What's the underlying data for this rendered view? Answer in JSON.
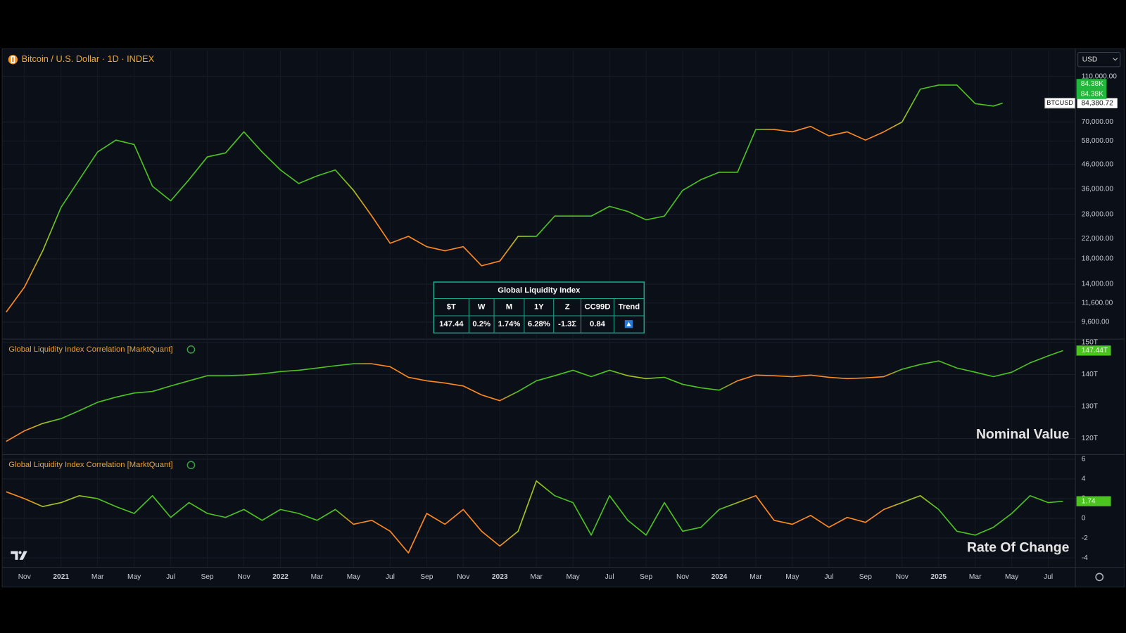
{
  "header": {
    "symbol_title": "Bitcoin / U.S. Dollar · 1D · INDEX",
    "currency": "USD"
  },
  "table": {
    "title": "Global Liquidity Index",
    "headers": [
      "$T",
      "W",
      "M",
      "1Y",
      "Z",
      "CC99D",
      "Trend"
    ],
    "row": [
      "147.44",
      "0.2%",
      "1.74%",
      "6.28%",
      "-1.3Σ",
      "0.84"
    ]
  },
  "chart_data": [
    {
      "type": "line",
      "log_scale": true,
      "grid": true,
      "xlim": [
        -1.22,
        57.46
      ],
      "ylim": [
        8140,
        142700
      ],
      "yticks": [
        {
          "value": 110000,
          "label": "110,000.00"
        },
        {
          "value": 70000,
          "label": "70,000.00"
        },
        {
          "value": 58000,
          "label": "58,000.00"
        },
        {
          "value": 46000,
          "label": "46,000.00"
        },
        {
          "value": 36000,
          "label": "36,000.00"
        },
        {
          "value": 28000,
          "label": "28,000.00"
        },
        {
          "value": 22000,
          "label": "22,000.00"
        },
        {
          "value": 18000,
          "label": "18,000.00"
        },
        {
          "value": 14000,
          "label": "14,000.00"
        },
        {
          "value": 11600,
          "label": "11,600.00"
        },
        {
          "value": 9600,
          "label": "9,600.00"
        }
      ],
      "badges": [
        "84.38K",
        "84.38K"
      ],
      "x": [
        -1,
        0,
        1,
        2,
        3,
        4,
        5,
        6,
        7,
        8,
        9,
        10,
        11,
        12,
        13,
        14,
        15,
        16,
        17,
        18,
        19,
        20,
        21,
        22,
        23,
        24,
        25,
        26,
        27,
        28,
        29,
        30,
        31,
        32,
        33,
        34,
        35,
        36,
        37,
        38,
        39,
        40,
        41,
        42,
        43,
        44,
        45,
        46,
        47,
        48,
        49,
        50,
        51,
        52,
        53,
        53.5
      ],
      "series": [
        {
          "name": "BTCUSD",
          "last_value_label": "84,380.72",
          "values": [
            10600,
            13600,
            19500,
            30000,
            39500,
            52000,
            58500,
            56000,
            37000,
            32000,
            39500,
            49500,
            51500,
            63500,
            52000,
            43500,
            38000,
            41000,
            43500,
            35500,
            27500,
            21000,
            22500,
            20300,
            19500,
            20300,
            16800,
            17600,
            22500,
            22500,
            27500,
            27500,
            27500,
            30300,
            28800,
            26500,
            27500,
            35500,
            39500,
            42500,
            42500,
            65000,
            65000,
            63500,
            67000,
            61000,
            63500,
            58500,
            63500,
            70000,
            97000,
            101000,
            101000,
            84000,
            82000,
            84380.72
          ],
          "colors": [
            "#ff8a1f",
            "#ff8a1f",
            "#a8c41a",
            "#4cc41f",
            "#4cc41f",
            "#4cc41f",
            "#4cc41f",
            "#4cc41f",
            "#4cc41f",
            "#4cc41f",
            "#4cc41f",
            "#4cc41f",
            "#4cc41f",
            "#4cc41f",
            "#4cc41f",
            "#4cc41f",
            "#4cc41f",
            "#4cc41f",
            "#4cc41f",
            "#a8c41a",
            "#ff8a1f",
            "#ff8a1f",
            "#ff8a1f",
            "#ff8a1f",
            "#ff8a1f",
            "#ff8a1f",
            "#ff8a1f",
            "#ff8a1f",
            "#a8c41a",
            "#4cc41f",
            "#4cc41f",
            "#4cc41f",
            "#4cc41f",
            "#4cc41f",
            "#4cc41f",
            "#4cc41f",
            "#4cc41f",
            "#4cc41f",
            "#4cc41f",
            "#4cc41f",
            "#4cc41f",
            "#4cc41f",
            "#ff8a1f",
            "#ff8a1f",
            "#ff8a1f",
            "#ff8a1f",
            "#ff8a1f",
            "#ff8a1f",
            "#ff8a1f",
            "#a8c41a",
            "#4cc41f",
            "#4cc41f",
            "#4cc41f",
            "#4cc41f",
            "#4cc41f",
            "#4cc41f"
          ]
        }
      ]
    },
    {
      "type": "line",
      "title": "Global Liquidity Index Correlation [MarktQuant]",
      "annotation": "Nominal Value",
      "grid": true,
      "xlim": [
        -1.22,
        57.46
      ],
      "ylim": [
        115.3,
        150.9
      ],
      "yticks": [
        {
          "value": 150,
          "label": "150T"
        },
        {
          "value": 140,
          "label": "140T"
        },
        {
          "value": 130,
          "label": "130T"
        },
        {
          "value": 120,
          "label": "120T"
        }
      ],
      "x": [
        -1,
        0,
        1,
        2,
        3,
        4,
        5,
        6,
        7,
        8,
        9,
        10,
        11,
        12,
        13,
        14,
        15,
        16,
        17,
        18,
        19,
        20,
        21,
        22,
        23,
        24,
        25,
        26,
        27,
        28,
        29,
        30,
        31,
        32,
        33,
        34,
        35,
        36,
        37,
        38,
        39,
        40,
        41,
        42,
        43,
        44,
        45,
        46,
        47,
        48,
        49,
        50,
        51,
        52,
        53,
        54,
        55,
        56,
        56.8
      ],
      "series": [
        {
          "last_value_label": "147.44T",
          "values": [
            119.1,
            122.4,
            124.7,
            126.2,
            128.7,
            131.3,
            132.9,
            134.2,
            134.7,
            136.4,
            138.0,
            139.6,
            139.6,
            139.8,
            140.2,
            140.9,
            141.3,
            142.0,
            142.7,
            143.3,
            143.3,
            142.4,
            139.1,
            138.0,
            137.3,
            136.4,
            133.6,
            131.8,
            134.7,
            138.0,
            139.6,
            141.3,
            139.3,
            141.3,
            139.6,
            138.7,
            139.1,
            136.9,
            135.8,
            135.1,
            138.0,
            139.8,
            139.6,
            139.3,
            139.8,
            139.1,
            138.7,
            138.9,
            139.3,
            141.6,
            143.1,
            144.2,
            142.0,
            140.7,
            139.3,
            140.7,
            143.6,
            145.8,
            147.44
          ],
          "colors": [
            "#ff8a1f",
            "#ff8a1f",
            "#a8c41a",
            "#4cc41f",
            "#4cc41f",
            "#4cc41f",
            "#4cc41f",
            "#4cc41f",
            "#4cc41f",
            "#4cc41f",
            "#4cc41f",
            "#4cc41f",
            "#4cc41f",
            "#4cc41f",
            "#4cc41f",
            "#4cc41f",
            "#4cc41f",
            "#4cc41f",
            "#4cc41f",
            "#4cc41f",
            "#ff8a1f",
            "#ff8a1f",
            "#ff8a1f",
            "#ff8a1f",
            "#ff8a1f",
            "#ff8a1f",
            "#ff8a1f",
            "#ff8a1f",
            "#4cc41f",
            "#4cc41f",
            "#4cc41f",
            "#4cc41f",
            "#4cc41f",
            "#4cc41f",
            "#a8c41a",
            "#a8c41a",
            "#4cc41f",
            "#4cc41f",
            "#4cc41f",
            "#4cc41f",
            "#ff8a1f",
            "#ff8a1f",
            "#ff8a1f",
            "#ff8a1f",
            "#ff8a1f",
            "#ff8a1f",
            "#ff8a1f",
            "#ff8a1f",
            "#ff8a1f",
            "#4cc41f",
            "#4cc41f",
            "#4cc41f",
            "#4cc41f",
            "#4cc41f",
            "#4cc41f",
            "#4cc41f",
            "#4cc41f",
            "#4cc41f",
            "#4cc41f"
          ]
        }
      ]
    },
    {
      "type": "line",
      "title": "Global Liquidity Index Correlation [MarktQuant]",
      "annotation": "Rate Of Change",
      "grid": true,
      "xlim": [
        -1.22,
        57.46
      ],
      "ylim": [
        -4.93,
        6.43
      ],
      "yticks": [
        6,
        4,
        2,
        0,
        -2,
        -4
      ],
      "xticks": [
        {
          "value": 0,
          "label": "Nov"
        },
        {
          "value": 2,
          "label": "2021"
        },
        {
          "value": 4,
          "label": "Mar"
        },
        {
          "value": 6,
          "label": "May"
        },
        {
          "value": 8,
          "label": "Jul"
        },
        {
          "value": 10,
          "label": "Sep"
        },
        {
          "value": 12,
          "label": "Nov"
        },
        {
          "value": 14,
          "label": "2022"
        },
        {
          "value": 16,
          "label": "Mar"
        },
        {
          "value": 18,
          "label": "May"
        },
        {
          "value": 20,
          "label": "Jul"
        },
        {
          "value": 22,
          "label": "Sep"
        },
        {
          "value": 24,
          "label": "Nov"
        },
        {
          "value": 26,
          "label": "2023"
        },
        {
          "value": 28,
          "label": "Mar"
        },
        {
          "value": 30,
          "label": "May"
        },
        {
          "value": 32,
          "label": "Jul"
        },
        {
          "value": 34,
          "label": "Sep"
        },
        {
          "value": 36,
          "label": "Nov"
        },
        {
          "value": 38,
          "label": "2024"
        },
        {
          "value": 40,
          "label": "Mar"
        },
        {
          "value": 42,
          "label": "May"
        },
        {
          "value": 44,
          "label": "Jul"
        },
        {
          "value": 46,
          "label": "Sep"
        },
        {
          "value": 48,
          "label": "Nov"
        },
        {
          "value": 50,
          "label": "2025"
        },
        {
          "value": 52,
          "label": "Mar"
        },
        {
          "value": 54,
          "label": "May"
        },
        {
          "value": 56,
          "label": "Jul"
        }
      ],
      "x": [
        -1,
        0,
        1,
        2,
        3,
        4,
        5,
        6,
        7,
        8,
        9,
        10,
        11,
        12,
        13,
        14,
        15,
        16,
        17,
        18,
        19,
        20,
        21,
        22,
        23,
        24,
        25,
        26,
        27,
        28,
        29,
        30,
        31,
        32,
        33,
        34,
        35,
        36,
        37,
        38,
        39,
        40,
        41,
        42,
        43,
        44,
        45,
        46,
        47,
        48,
        49,
        50,
        51,
        52,
        53,
        54,
        55,
        56,
        56.8
      ],
      "series": [
        {
          "last_value_label": "1.74",
          "values": [
            2.7,
            2.0,
            1.2,
            1.6,
            2.3,
            2.0,
            1.2,
            0.5,
            2.3,
            0.1,
            1.6,
            0.5,
            0.1,
            0.9,
            -0.2,
            0.9,
            0.5,
            -0.2,
            0.9,
            -0.6,
            -0.2,
            -1.3,
            -3.5,
            0.5,
            -0.6,
            0.9,
            -1.3,
            -2.8,
            -1.3,
            3.8,
            2.3,
            1.6,
            -1.7,
            2.3,
            -0.2,
            -1.7,
            1.6,
            -1.3,
            -0.9,
            0.9,
            1.6,
            2.3,
            -0.2,
            -0.6,
            0.3,
            -0.9,
            0.1,
            -0.4,
            0.9,
            1.6,
            2.3,
            0.9,
            -1.3,
            -1.7,
            -0.9,
            0.5,
            2.3,
            1.6,
            1.74
          ],
          "colors": [
            "#ff8a1f",
            "#ff8a1f",
            "#a8c41a",
            "#a8c41a",
            "#a8c41a",
            "#4cc41f",
            "#4cc41f",
            "#4cc41f",
            "#4cc41f",
            "#4cc41f",
            "#4cc41f",
            "#4cc41f",
            "#4cc41f",
            "#4cc41f",
            "#4cc41f",
            "#4cc41f",
            "#4cc41f",
            "#4cc41f",
            "#4cc41f",
            "#ff8a1f",
            "#ff8a1f",
            "#ff8a1f",
            "#ff8a1f",
            "#ff8a1f",
            "#ff8a1f",
            "#ff8a1f",
            "#ff8a1f",
            "#ff8a1f",
            "#a8c41a",
            "#a8c41a",
            "#4cc41f",
            "#4cc41f",
            "#4cc41f",
            "#4cc41f",
            "#4cc41f",
            "#4cc41f",
            "#4cc41f",
            "#4cc41f",
            "#4cc41f",
            "#4cc41f",
            "#a8c41a",
            "#ff8a1f",
            "#ff8a1f",
            "#ff8a1f",
            "#ff8a1f",
            "#ff8a1f",
            "#ff8a1f",
            "#ff8a1f",
            "#ff8a1f",
            "#a8c41a",
            "#a8c41a",
            "#4cc41f",
            "#4cc41f",
            "#4cc41f",
            "#4cc41f",
            "#4cc41f",
            "#4cc41f",
            "#4cc41f",
            "#4cc41f"
          ]
        }
      ]
    }
  ]
}
